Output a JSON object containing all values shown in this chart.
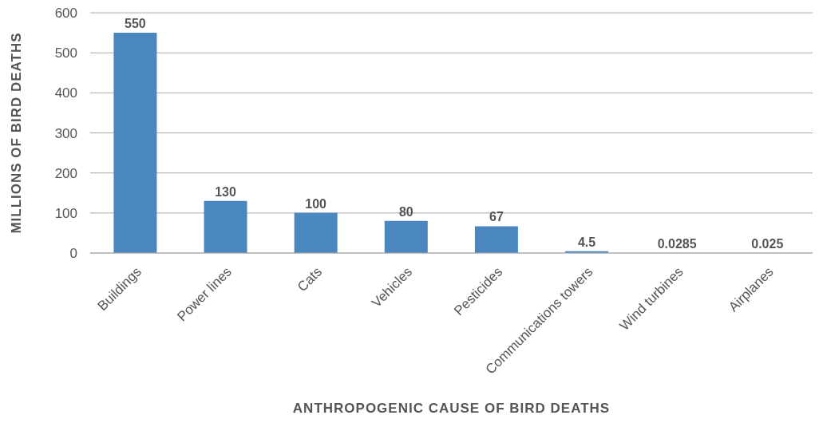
{
  "chart_data": {
    "type": "bar",
    "xlabel": "ANTHROPOGENIC CAUSE OF BIRD DEATHS",
    "ylabel": "MILLIONS OF BIRD DEATHS",
    "categories": [
      "Buildings",
      "Power lines",
      "Cats",
      "Vehicles",
      "Pesticides",
      "Communications towers",
      "Wind turbines",
      "Airplanes"
    ],
    "values": [
      550,
      130,
      100,
      80,
      67,
      4.5,
      0.0285,
      0.025
    ],
    "color": "#4a87bf",
    "ylim": [
      0,
      600
    ],
    "yticks": [
      0,
      100,
      200,
      300,
      400,
      500,
      600
    ],
    "grid": "y",
    "data_labels": true
  }
}
